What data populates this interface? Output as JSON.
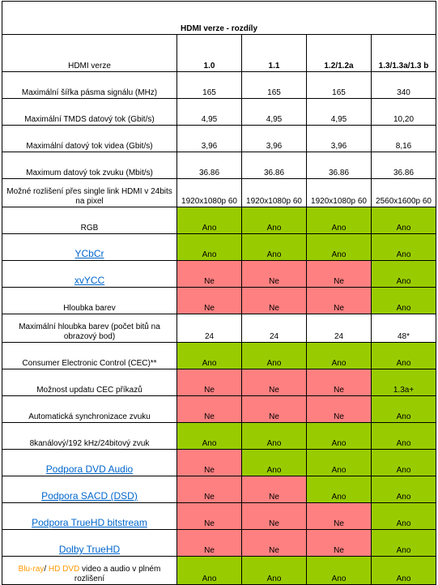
{
  "title": "HDMI verze - rozdíly",
  "header": {
    "label": "HDMI verze",
    "versions": [
      "1.0",
      "1.1",
      "1.2/1.2a",
      "1.3/1.3a/1.3 b"
    ]
  },
  "colors": {
    "yes": "#99cc00",
    "no": "#ff8080",
    "title": "#ff6600",
    "link": "#0066cc"
  },
  "rows": [
    {
      "label": "Maximální šířka pásma signálu (MHz)",
      "values": [
        "165",
        "165",
        "165",
        "340"
      ]
    },
    {
      "label": "Maximální TMDS datový tok (Gbit/s)",
      "values": [
        "4,95",
        "4,95",
        "4,95",
        "10,20"
      ]
    },
    {
      "label": "Maximální datový tok videa (Gbit/s)",
      "values": [
        "3,96",
        "3,96",
        "3,96",
        "8,16"
      ]
    },
    {
      "label": "Maximum datový tok zvuku (Mbit/s)",
      "values": [
        "36.86",
        "36.86",
        "36.86",
        "36.86"
      ]
    },
    {
      "label": "Možné rozlišení přes single link HDMI v 24bits na pixel",
      "values": [
        "1920x1080p 60",
        "1920x1080p 60",
        "1920x1080p 60",
        "2560x1600p 60"
      ]
    },
    {
      "label": "RGB",
      "values": [
        "Ano",
        "Ano",
        "Ano",
        "Ano"
      ]
    },
    {
      "label": "YCbCr",
      "values": [
        "Ano",
        "Ano",
        "Ano",
        "Ano"
      ]
    },
    {
      "label": "xvYCC",
      "values": [
        "Ne",
        "Ne",
        "Ne",
        "Ano"
      ]
    },
    {
      "label": "Hloubka barev",
      "values": [
        "Ne",
        "Ne",
        "Ne",
        "Ano"
      ]
    },
    {
      "label": "Maximální hloubka barev (počet bitů na obrazový bod)",
      "values": [
        "24",
        "24",
        "24",
        "48*"
      ]
    },
    {
      "label": "Consumer Electronic Control (CEC)**",
      "values": [
        "Ano",
        "Ano",
        "Ano",
        "Ano"
      ]
    },
    {
      "label": "Možnost updatu CEC příkazů",
      "values": [
        "Ne",
        "Ne",
        "Ne",
        "1.3a+"
      ]
    },
    {
      "label": "Automatická synchronizace zvuku",
      "values": [
        "Ne",
        "Ne",
        "Ne",
        "Ano"
      ]
    },
    {
      "label": "8kanálový/192 kHz/24bitový zvuk",
      "values": [
        "Ano",
        "Ano",
        "Ano",
        "Ano"
      ]
    },
    {
      "label": "Podpora DVD Audio",
      "values": [
        "Ne",
        "Ano",
        "Ano",
        "Ano"
      ]
    },
    {
      "label": "Podpora SACD (DSD)",
      "values": [
        "Ne",
        "Ne",
        "Ano",
        "Ano"
      ]
    },
    {
      "label": "Podpora TrueHD bitstream",
      "values": [
        "Ne",
        "Ne",
        "Ne",
        "Ano"
      ]
    },
    {
      "label": "Dolby TrueHD",
      "values": [
        "Ne",
        "Ne",
        "Ne",
        "Ano"
      ]
    },
    {
      "label_parts": [
        "Blu-ray",
        "/ ",
        "HD DVD",
        " video a audio v plném rozlišení"
      ],
      "values": [
        "Ano",
        "Ano",
        "Ano",
        "Ano"
      ]
    }
  ]
}
